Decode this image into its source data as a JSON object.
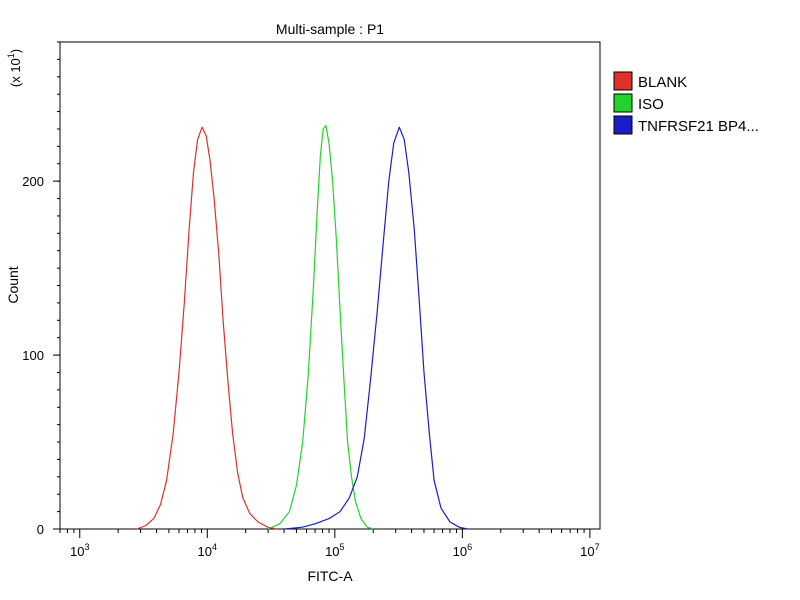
{
  "chart_data": {
    "type": "line",
    "title": "Multi-sample : P1",
    "xlabel": "FITC-A",
    "ylabel": "Count",
    "y_multiplier": "(x 10",
    "y_multiplier_exp": "1",
    "x_scale": "log",
    "xlim": [
      700,
      12000000
    ],
    "ylim": [
      0,
      280
    ],
    "x_ticks": [
      {
        "value": 1000,
        "base": "10",
        "exp": "3"
      },
      {
        "value": 10000,
        "base": "10",
        "exp": "4"
      },
      {
        "value": 100000,
        "base": "10",
        "exp": "5"
      },
      {
        "value": 1000000,
        "base": "10",
        "exp": "6"
      },
      {
        "value": 10000000,
        "base": "10",
        "exp": "7"
      }
    ],
    "y_ticks": [
      {
        "value": 0,
        "label": "0"
      },
      {
        "value": 100,
        "label": "100"
      },
      {
        "value": 200,
        "label": "200"
      }
    ],
    "grid": false,
    "legend_position": "right",
    "series": [
      {
        "name": "BLANK",
        "color": "#e0302a",
        "points": [
          [
            2800,
            0
          ],
          [
            3300,
            2
          ],
          [
            3800,
            6
          ],
          [
            4300,
            14
          ],
          [
            4800,
            28
          ],
          [
            5400,
            55
          ],
          [
            6000,
            90
          ],
          [
            6600,
            130
          ],
          [
            7200,
            172
          ],
          [
            7800,
            205
          ],
          [
            8400,
            224
          ],
          [
            9100,
            231
          ],
          [
            9800,
            226
          ],
          [
            10500,
            212
          ],
          [
            11300,
            190
          ],
          [
            12300,
            158
          ],
          [
            13300,
            120
          ],
          [
            14500,
            85
          ],
          [
            15800,
            55
          ],
          [
            17300,
            32
          ],
          [
            19000,
            18
          ],
          [
            21500,
            9
          ],
          [
            25000,
            4
          ],
          [
            30000,
            1
          ],
          [
            35000,
            0
          ]
        ]
      },
      {
        "name": "ISO",
        "color": "#22d42a",
        "points": [
          [
            30000,
            0
          ],
          [
            37000,
            3
          ],
          [
            44000,
            10
          ],
          [
            50000,
            25
          ],
          [
            56000,
            50
          ],
          [
            62000,
            90
          ],
          [
            68000,
            140
          ],
          [
            73000,
            185
          ],
          [
            77000,
            215
          ],
          [
            81000,
            230
          ],
          [
            85000,
            232
          ],
          [
            90000,
            222
          ],
          [
            96000,
            200
          ],
          [
            103000,
            165
          ],
          [
            110000,
            125
          ],
          [
            118000,
            85
          ],
          [
            126000,
            50
          ],
          [
            135000,
            30
          ],
          [
            145000,
            16
          ],
          [
            160000,
            6
          ],
          [
            180000,
            1
          ],
          [
            200000,
            0
          ]
        ]
      },
      {
        "name": "TNFRSF21 BP4...",
        "color": "#1a1ec8",
        "points": [
          [
            40000,
            0
          ],
          [
            55000,
            1
          ],
          [
            70000,
            3
          ],
          [
            90000,
            6
          ],
          [
            110000,
            10
          ],
          [
            130000,
            18
          ],
          [
            150000,
            30
          ],
          [
            170000,
            52
          ],
          [
            190000,
            85
          ],
          [
            215000,
            125
          ],
          [
            240000,
            165
          ],
          [
            265000,
            200
          ],
          [
            290000,
            222
          ],
          [
            320000,
            231
          ],
          [
            350000,
            224
          ],
          [
            380000,
            205
          ],
          [
            420000,
            172
          ],
          [
            460000,
            130
          ],
          [
            500000,
            90
          ],
          [
            550000,
            55
          ],
          [
            600000,
            28
          ],
          [
            680000,
            12
          ],
          [
            800000,
            4
          ],
          [
            950000,
            1
          ],
          [
            1100000,
            0
          ]
        ]
      }
    ]
  }
}
